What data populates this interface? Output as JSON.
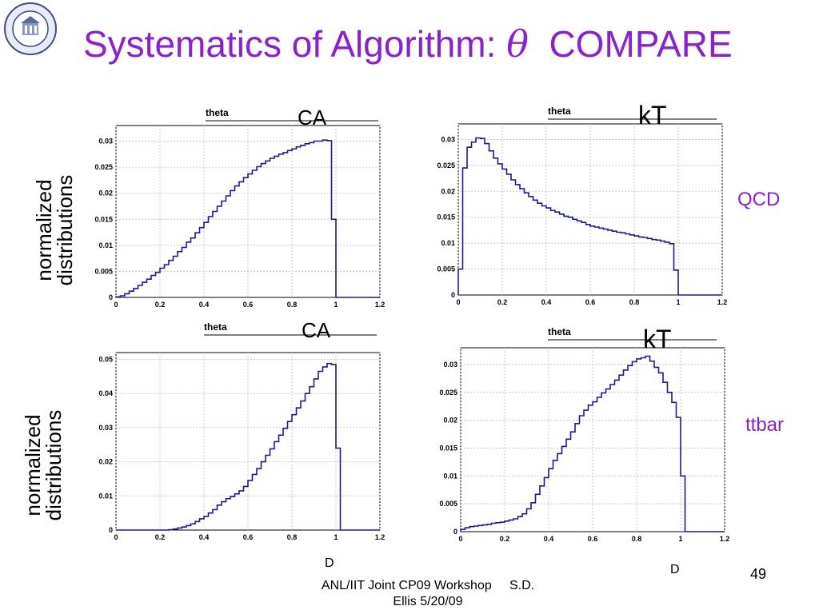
{
  "slide": {
    "title_main": "Systematics of Algorithm: ",
    "title_symbol": "θ",
    "title_end": "COMPARE",
    "ylabel_line1": "normalized",
    "ylabel_line2": "distributions",
    "row_labels": [
      "QCD",
      "ttbar"
    ],
    "algo_labels": [
      "CA",
      "kT",
      "CA",
      "kT"
    ],
    "d_label": "D",
    "footer_line1": "ANL/IIT Joint CP09 Workshop     S.D.",
    "footer_line2": "Ellis 5/20/09",
    "page_number": "49",
    "colors": {
      "title": "#8a1fd6",
      "histogram": "#1a1a9e",
      "grid": "#c8c8c8"
    }
  },
  "chart_data": [
    {
      "type": "line",
      "panel": "QCD CA",
      "title": "theta",
      "xlim": [
        0,
        1.2
      ],
      "ylim": [
        0,
        0.033
      ],
      "xticks": [
        "0",
        "0.2",
        "0.4",
        "0.6",
        "0.8",
        "1",
        "1.2"
      ],
      "yticks": [
        "0",
        "0.005",
        "0.01",
        "0.015",
        "0.02",
        "0.025",
        "0.03"
      ],
      "ytick_values": [
        0,
        0.005,
        0.01,
        0.015,
        0.02,
        0.025,
        0.03
      ],
      "grid": true,
      "x": [
        0,
        0.02,
        0.04,
        0.06,
        0.08,
        0.1,
        0.12,
        0.14,
        0.16,
        0.18,
        0.2,
        0.22,
        0.24,
        0.26,
        0.28,
        0.3,
        0.32,
        0.34,
        0.36,
        0.38,
        0.4,
        0.42,
        0.44,
        0.46,
        0.48,
        0.5,
        0.52,
        0.54,
        0.56,
        0.58,
        0.6,
        0.62,
        0.64,
        0.66,
        0.68,
        0.7,
        0.72,
        0.74,
        0.76,
        0.78,
        0.8,
        0.82,
        0.84,
        0.86,
        0.88,
        0.9,
        0.92,
        0.94,
        0.96,
        0.98,
        1.0,
        1.02
      ],
      "y": [
        0.0001,
        0.0003,
        0.0007,
        0.0012,
        0.0017,
        0.0023,
        0.0029,
        0.0035,
        0.0042,
        0.0048,
        0.0056,
        0.0063,
        0.0071,
        0.0079,
        0.0088,
        0.0096,
        0.0106,
        0.0114,
        0.0124,
        0.0134,
        0.0144,
        0.0155,
        0.0165,
        0.0175,
        0.0185,
        0.0195,
        0.0205,
        0.0214,
        0.0222,
        0.023,
        0.0237,
        0.0244,
        0.0251,
        0.0257,
        0.0262,
        0.0267,
        0.0271,
        0.0275,
        0.0278,
        0.0282,
        0.0285,
        0.0289,
        0.0292,
        0.0295,
        0.0297,
        0.03,
        0.03,
        0.0302,
        0.0301,
        0.015,
        0,
        0
      ]
    },
    {
      "type": "line",
      "panel": "QCD kT",
      "title": "theta",
      "xlim": [
        0,
        1.2
      ],
      "ylim": [
        0,
        0.033
      ],
      "xticks": [
        "0",
        "0.2",
        "0.4",
        "0.6",
        "0.8",
        "1",
        "1.2"
      ],
      "yticks": [
        "0",
        "0.005",
        "0.01",
        "0.015",
        "0.02",
        "0.025",
        "0.03"
      ],
      "ytick_values": [
        0,
        0.005,
        0.01,
        0.015,
        0.02,
        0.025,
        0.03
      ],
      "grid": true,
      "x": [
        0,
        0.02,
        0.04,
        0.06,
        0.08,
        0.1,
        0.12,
        0.14,
        0.16,
        0.18,
        0.2,
        0.22,
        0.24,
        0.26,
        0.28,
        0.3,
        0.32,
        0.34,
        0.36,
        0.38,
        0.4,
        0.42,
        0.44,
        0.46,
        0.48,
        0.5,
        0.52,
        0.54,
        0.56,
        0.58,
        0.6,
        0.62,
        0.64,
        0.66,
        0.68,
        0.7,
        0.72,
        0.74,
        0.76,
        0.78,
        0.8,
        0.82,
        0.84,
        0.86,
        0.88,
        0.9,
        0.92,
        0.94,
        0.96,
        0.98,
        1.0,
        1.02
      ],
      "y": [
        0.005,
        0.0245,
        0.0285,
        0.0295,
        0.0303,
        0.0302,
        0.0292,
        0.0278,
        0.0264,
        0.0253,
        0.0243,
        0.0233,
        0.0222,
        0.0213,
        0.0205,
        0.0197,
        0.019,
        0.0183,
        0.0177,
        0.0172,
        0.0168,
        0.0163,
        0.016,
        0.0156,
        0.0152,
        0.015,
        0.0146,
        0.0143,
        0.014,
        0.0136,
        0.0133,
        0.0131,
        0.0129,
        0.0127,
        0.0125,
        0.0123,
        0.0121,
        0.012,
        0.0118,
        0.0116,
        0.0114,
        0.0112,
        0.0111,
        0.0109,
        0.0107,
        0.0106,
        0.0104,
        0.0102,
        0.0099,
        0.0048,
        0,
        0
      ]
    },
    {
      "type": "line",
      "panel": "ttbar CA",
      "title": "theta",
      "xlim": [
        0,
        1.2
      ],
      "ylim": [
        0,
        0.052
      ],
      "xticks": [
        "0",
        "0.2",
        "0.4",
        "0.6",
        "0.8",
        "1",
        "1.2"
      ],
      "yticks": [
        "0",
        "0.01",
        "0.02",
        "0.03",
        "0.04",
        "0.05"
      ],
      "ytick_values": [
        0,
        0.01,
        0.02,
        0.03,
        0.04,
        0.05
      ],
      "grid": true,
      "x": [
        0,
        0.02,
        0.04,
        0.06,
        0.08,
        0.1,
        0.12,
        0.14,
        0.16,
        0.18,
        0.2,
        0.22,
        0.24,
        0.26,
        0.28,
        0.3,
        0.32,
        0.34,
        0.36,
        0.38,
        0.4,
        0.42,
        0.44,
        0.46,
        0.48,
        0.5,
        0.52,
        0.54,
        0.56,
        0.58,
        0.6,
        0.62,
        0.64,
        0.66,
        0.68,
        0.7,
        0.72,
        0.74,
        0.76,
        0.78,
        0.8,
        0.82,
        0.84,
        0.86,
        0.88,
        0.9,
        0.92,
        0.94,
        0.96,
        0.98,
        1.0,
        1.02
      ],
      "y": [
        0,
        0,
        0,
        0,
        0,
        0,
        0,
        0,
        0,
        0,
        0,
        0,
        0.0001,
        0.0003,
        0.0006,
        0.0009,
        0.0013,
        0.0018,
        0.0025,
        0.0033,
        0.004,
        0.005,
        0.006,
        0.0073,
        0.0083,
        0.0092,
        0.0098,
        0.0106,
        0.0115,
        0.0128,
        0.0145,
        0.0163,
        0.018,
        0.02,
        0.0219,
        0.0238,
        0.0259,
        0.0278,
        0.0298,
        0.0318,
        0.0338,
        0.0358,
        0.0378,
        0.04,
        0.042,
        0.0443,
        0.0465,
        0.0478,
        0.0488,
        0.0485,
        0.024,
        0
      ]
    },
    {
      "type": "line",
      "panel": "ttbar kT",
      "title": "theta",
      "xlim": [
        0,
        1.2
      ],
      "ylim": [
        0,
        0.033
      ],
      "xticks": [
        "0",
        "0.2",
        "0.4",
        "0.6",
        "0.8",
        "1",
        "1.2"
      ],
      "yticks": [
        "0",
        "0.005",
        "0.01",
        "0.015",
        "0.02",
        "0.025",
        "0.03"
      ],
      "ytick_values": [
        0,
        0.005,
        0.01,
        0.015,
        0.02,
        0.025,
        0.03
      ],
      "grid": true,
      "x": [
        0,
        0.02,
        0.04,
        0.06,
        0.08,
        0.1,
        0.12,
        0.14,
        0.16,
        0.18,
        0.2,
        0.22,
        0.24,
        0.26,
        0.28,
        0.3,
        0.32,
        0.34,
        0.36,
        0.38,
        0.4,
        0.42,
        0.44,
        0.46,
        0.48,
        0.5,
        0.52,
        0.54,
        0.56,
        0.58,
        0.6,
        0.62,
        0.64,
        0.66,
        0.68,
        0.7,
        0.72,
        0.74,
        0.76,
        0.78,
        0.8,
        0.82,
        0.84,
        0.86,
        0.88,
        0.9,
        0.92,
        0.94,
        0.96,
        0.98,
        1.0,
        1.02
      ],
      "y": [
        0.0004,
        0.0007,
        0.0009,
        0.001,
        0.0011,
        0.0012,
        0.0013,
        0.0015,
        0.0016,
        0.0017,
        0.0019,
        0.0021,
        0.0023,
        0.0027,
        0.0032,
        0.0041,
        0.0052,
        0.0067,
        0.0082,
        0.0097,
        0.0113,
        0.0128,
        0.014,
        0.0153,
        0.0166,
        0.0179,
        0.0194,
        0.0208,
        0.0218,
        0.0227,
        0.0233,
        0.0241,
        0.0249,
        0.0256,
        0.0264,
        0.0272,
        0.0281,
        0.029,
        0.0298,
        0.0305,
        0.031,
        0.0312,
        0.0315,
        0.0306,
        0.0295,
        0.0285,
        0.0268,
        0.025,
        0.0232,
        0.0205,
        0.01,
        0
      ]
    }
  ]
}
